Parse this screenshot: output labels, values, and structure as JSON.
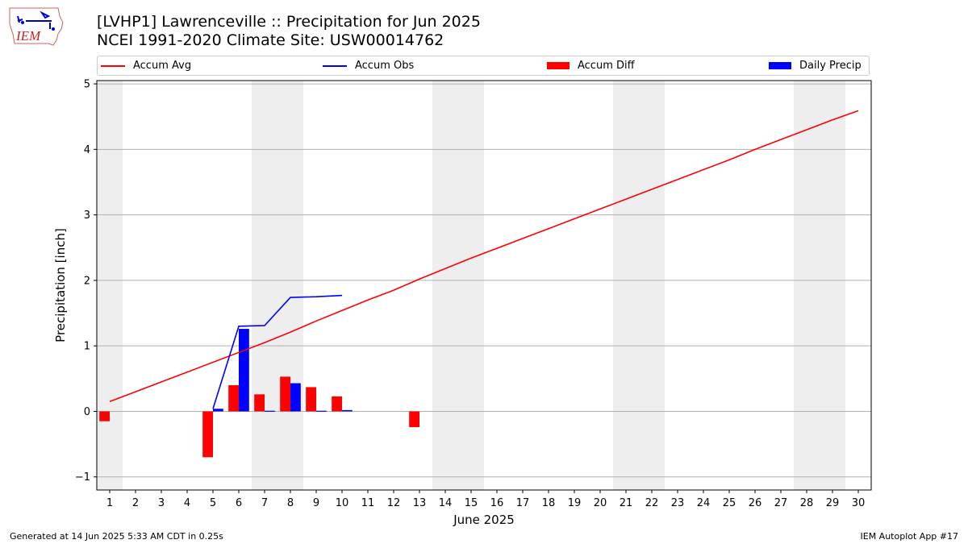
{
  "header": {
    "title_line1": "[LVHP1] Lawrenceville :: Precipitation for Jun 2025",
    "title_line2": "NCEI 1991-2020 Climate Site: USW00014762"
  },
  "logo": {
    "text": "IEM"
  },
  "footer": {
    "left": "Generated at 14 Jun 2025 5:33 AM CDT in 0.25s",
    "right": "IEM Autoplot App #17"
  },
  "colors": {
    "accum_avg": "#ff0000",
    "accum_obs": "#0000ff",
    "accum_diff": "#ff0000",
    "daily_precip": "#0000ff",
    "weekend_band": "#eeeeee",
    "grid": "#b0b0b0"
  },
  "chart_data": {
    "type": "bar",
    "xlabel": "June 2025",
    "ylabel": "Precipitation [inch]",
    "ylim": [
      -1.2,
      5.05
    ],
    "yticks": [
      -1,
      0,
      1,
      2,
      3,
      4,
      5
    ],
    "x": [
      1,
      2,
      3,
      4,
      5,
      6,
      7,
      8,
      9,
      10,
      11,
      12,
      13,
      14,
      15,
      16,
      17,
      18,
      19,
      20,
      21,
      22,
      23,
      24,
      25,
      26,
      27,
      28,
      29,
      30
    ],
    "xtick_labels": [
      "1",
      "2",
      "3",
      "4",
      "5",
      "6",
      "7",
      "8",
      "9",
      "10",
      "11",
      "12",
      "13",
      "14",
      "15",
      "16",
      "17",
      "18",
      "19",
      "20",
      "21",
      "22",
      "23",
      "24",
      "25",
      "26",
      "27",
      "28",
      "29",
      "30"
    ],
    "grid": "horizontal",
    "legend": {
      "placement": "top",
      "entries": [
        "Accum Avg",
        "Accum Obs",
        "Accum Diff",
        "Daily Precip"
      ]
    },
    "weekend_bands": [
      [
        0.5,
        1.5
      ],
      [
        6.5,
        8.5
      ],
      [
        13.5,
        15.5
      ],
      [
        20.5,
        22.5
      ],
      [
        27.5,
        29.5
      ]
    ],
    "series": [
      {
        "name": "Accum Avg",
        "kind": "line",
        "x": [
          1,
          2,
          3,
          4,
          5,
          6,
          7,
          8,
          9,
          10,
          11,
          12,
          13,
          14,
          15,
          16,
          17,
          18,
          19,
          20,
          21,
          22,
          23,
          24,
          25,
          26,
          27,
          28,
          29,
          30
        ],
        "values": [
          0.15,
          0.3,
          0.45,
          0.6,
          0.75,
          0.9,
          1.05,
          1.21,
          1.38,
          1.54,
          1.7,
          1.85,
          2.02,
          2.18,
          2.34,
          2.49,
          2.64,
          2.79,
          2.94,
          3.09,
          3.24,
          3.39,
          3.54,
          3.69,
          3.84,
          4.0,
          4.15,
          4.3,
          4.45,
          4.59
        ]
      },
      {
        "name": "Accum Obs",
        "kind": "line",
        "x": [
          5,
          6,
          7,
          8,
          9,
          10
        ],
        "values": [
          0.04,
          1.3,
          1.31,
          1.74,
          1.75,
          1.77
        ]
      },
      {
        "name": "Accum Diff",
        "kind": "bar",
        "x": [
          1,
          5,
          6,
          7,
          8,
          9,
          10,
          13
        ],
        "values": [
          -0.15,
          -0.7,
          0.4,
          0.26,
          0.53,
          0.37,
          0.23,
          -0.24
        ]
      },
      {
        "name": "Daily Precip",
        "kind": "bar",
        "x": [
          5,
          6,
          7,
          8,
          9,
          10
        ],
        "values": [
          0.04,
          1.26,
          0.01,
          0.43,
          0.01,
          0.02
        ]
      }
    ]
  }
}
